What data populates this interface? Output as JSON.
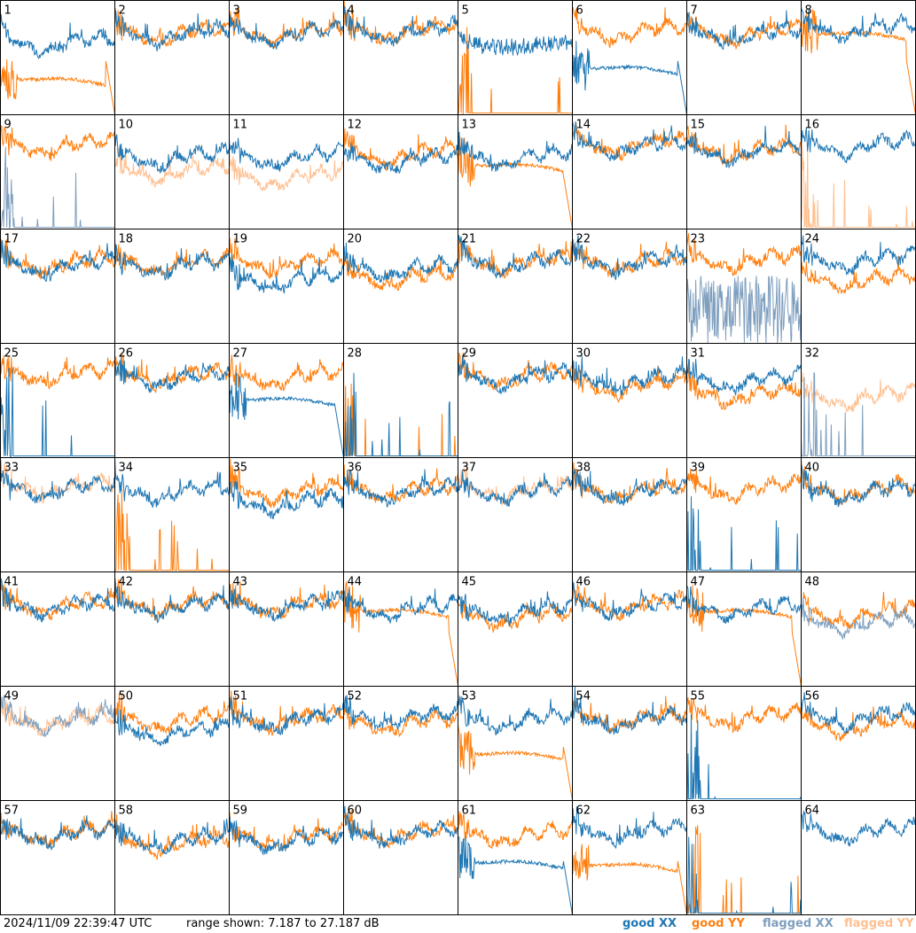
{
  "timestamp": "2024/11/09 22:39:47 UTC",
  "range_text": "range shown: 7.187 to 27.187 dB",
  "legend": {
    "good_xx": "good XX",
    "good_yy": "good YY",
    "flagged_xx": "flagged XX",
    "flagged_yy": "flagged YY"
  },
  "colors": {
    "good_xx": "#1f77b4",
    "good_yy": "#ff7f0e",
    "flagged_xx": "#7f9fbf",
    "flagged_yy": "#ffbf8f",
    "grid": "#000000"
  },
  "chart_data": {
    "type": "line",
    "title": "",
    "xlabel": "",
    "ylabel": "",
    "ylim": [
      7.187,
      27.187
    ],
    "grid_layout": [
      8,
      8
    ],
    "panels": [
      {
        "label": "1",
        "xx": {
          "shape": "normal",
          "level": 19.5
        },
        "yy": {
          "shape": "droop",
          "level": 12,
          "flagged": false
        }
      },
      {
        "label": "2",
        "xx": {
          "shape": "normal",
          "level": 21
        },
        "yy": {
          "shape": "normal",
          "level": 21.2
        }
      },
      {
        "label": "3",
        "xx": {
          "shape": "normal",
          "level": 21
        },
        "yy": {
          "shape": "normal",
          "level": 21.3
        }
      },
      {
        "label": "4",
        "xx": {
          "shape": "normal",
          "level": 21.5
        },
        "yy": {
          "shape": "normal",
          "level": 21.7
        }
      },
      {
        "label": "5",
        "xx": {
          "shape": "dip",
          "level": 18
        },
        "yy": {
          "shape": "spikes_low",
          "level": 8
        }
      },
      {
        "label": "6",
        "xx": {
          "shape": "droop",
          "level": 14
        },
        "yy": {
          "shape": "normal",
          "level": 21.5
        }
      },
      {
        "label": "7",
        "xx": {
          "shape": "normal",
          "level": 21
        },
        "yy": {
          "shape": "normal",
          "level": 21.2
        }
      },
      {
        "label": "8",
        "xx": {
          "shape": "normal",
          "level": 22
        },
        "yy": {
          "shape": "droop",
          "level": 20
        }
      },
      {
        "label": "9",
        "xx": {
          "shape": "spikes_low",
          "level": 8,
          "flagged": true
        },
        "yy": {
          "shape": "normal",
          "level": 21.5
        }
      },
      {
        "label": "10",
        "xx": {
          "shape": "normal",
          "level": 19.5
        },
        "yy": {
          "shape": "normal",
          "level": 17,
          "flagged": true
        }
      },
      {
        "label": "11",
        "xx": {
          "shape": "normal",
          "level": 19.5
        },
        "yy": {
          "shape": "normal",
          "level": 16,
          "flagged": true
        }
      },
      {
        "label": "12",
        "xx": {
          "shape": "normal",
          "level": 19
        },
        "yy": {
          "shape": "normal",
          "level": 20
        }
      },
      {
        "label": "13",
        "xx": {
          "shape": "normal",
          "level": 19.5
        },
        "yy": {
          "shape": "droop",
          "level": 17
        }
      },
      {
        "label": "14",
        "xx": {
          "shape": "normal",
          "level": 21.5
        },
        "yy": {
          "shape": "normal",
          "level": 21.6
        }
      },
      {
        "label": "15",
        "xx": {
          "shape": "normal",
          "level": 20.5
        },
        "yy": {
          "shape": "normal",
          "level": 20.8
        }
      },
      {
        "label": "16",
        "xx": {
          "shape": "normal",
          "level": 21.5
        },
        "yy": {
          "shape": "spikes_low",
          "level": 7.4,
          "flagged": true
        }
      },
      {
        "label": "17",
        "xx": {
          "shape": "normal",
          "level": 20.5
        },
        "yy": {
          "shape": "normal",
          "level": 21
        }
      },
      {
        "label": "18",
        "xx": {
          "shape": "normal",
          "level": 20.5
        },
        "yy": {
          "shape": "normal",
          "level": 21
        }
      },
      {
        "label": "19",
        "xx": {
          "shape": "normal",
          "level": 18
        },
        "yy": {
          "shape": "normal",
          "level": 21
        }
      },
      {
        "label": "20",
        "xx": {
          "shape": "normal",
          "level": 20
        },
        "yy": {
          "shape": "normal",
          "level": 18.5
        }
      },
      {
        "label": "21",
        "xx": {
          "shape": "normal",
          "level": 21
        },
        "yy": {
          "shape": "normal",
          "level": 21.2
        }
      },
      {
        "label": "22",
        "xx": {
          "shape": "normal",
          "level": 21
        },
        "yy": {
          "shape": "normal",
          "level": 21.2
        }
      },
      {
        "label": "23",
        "xx": {
          "shape": "spikes_mid",
          "level": 14,
          "flagged": true
        },
        "yy": {
          "shape": "normal",
          "level": 21.5
        }
      },
      {
        "label": "24",
        "xx": {
          "shape": "normal",
          "level": 21.5
        },
        "yy": {
          "shape": "normal",
          "level": 18
        }
      },
      {
        "label": "25",
        "xx": {
          "shape": "spikes_low",
          "level": 7.4
        },
        "yy": {
          "shape": "normal",
          "level": 21.5
        }
      },
      {
        "label": "26",
        "xx": {
          "shape": "normal",
          "level": 21
        },
        "yy": {
          "shape": "normal",
          "level": 21.2
        }
      },
      {
        "label": "27",
        "xx": {
          "shape": "droop",
          "level": 16
        },
        "yy": {
          "shape": "normal",
          "level": 21
        }
      },
      {
        "label": "28",
        "xx": {
          "shape": "spikes_low",
          "level": 7.4
        },
        "yy": {
          "shape": "spikes_low",
          "level": 8
        }
      },
      {
        "label": "29",
        "xx": {
          "shape": "normal",
          "level": 21
        },
        "yy": {
          "shape": "normal",
          "level": 21.3
        }
      },
      {
        "label": "30",
        "xx": {
          "shape": "normal",
          "level": 20.5
        },
        "yy": {
          "shape": "normal",
          "level": 19.5
        }
      },
      {
        "label": "31",
        "xx": {
          "shape": "normal",
          "level": 20.5
        },
        "yy": {
          "shape": "normal",
          "level": 18
        }
      },
      {
        "label": "32",
        "xx": {
          "shape": "spikes_low",
          "level": 7.4,
          "flagged": true
        },
        "yy": {
          "shape": "normal",
          "level": 17.5,
          "flagged": true
        }
      },
      {
        "label": "33",
        "xx": {
          "shape": "normal",
          "level": 21.5
        },
        "yy": {
          "shape": "normal",
          "level": 21.8,
          "flagged": true
        }
      },
      {
        "label": "34",
        "xx": {
          "shape": "normal",
          "level": 21
        },
        "yy": {
          "shape": "spikes_low",
          "level": 8
        }
      },
      {
        "label": "35",
        "xx": {
          "shape": "normal",
          "level": 19
        },
        "yy": {
          "shape": "normal",
          "level": 21
        }
      },
      {
        "label": "36",
        "xx": {
          "shape": "normal",
          "level": 21
        },
        "yy": {
          "shape": "normal",
          "level": 21.2
        }
      },
      {
        "label": "37",
        "xx": {
          "shape": "normal",
          "level": 21
        },
        "yy": {
          "shape": "normal",
          "level": 21.3,
          "flagged": true
        }
      },
      {
        "label": "38",
        "xx": {
          "shape": "normal",
          "level": 21
        },
        "yy": {
          "shape": "normal",
          "level": 21.2
        }
      },
      {
        "label": "39",
        "xx": {
          "shape": "spikes_low",
          "level": 8
        },
        "yy": {
          "shape": "normal",
          "level": 21.5
        }
      },
      {
        "label": "40",
        "xx": {
          "shape": "normal",
          "level": 21
        },
        "yy": {
          "shape": "normal",
          "level": 21.3
        }
      },
      {
        "label": "41",
        "xx": {
          "shape": "normal",
          "level": 21
        },
        "yy": {
          "shape": "normal",
          "level": 21.2
        }
      },
      {
        "label": "42",
        "xx": {
          "shape": "normal",
          "level": 21
        },
        "yy": {
          "shape": "normal",
          "level": 21.3
        }
      },
      {
        "label": "43",
        "xx": {
          "shape": "normal",
          "level": 21
        },
        "yy": {
          "shape": "normal",
          "level": 21.2
        }
      },
      {
        "label": "44",
        "xx": {
          "shape": "normal",
          "level": 20.5
        },
        "yy": {
          "shape": "droop",
          "level": 19
        }
      },
      {
        "label": "45",
        "xx": {
          "shape": "normal",
          "level": 20
        },
        "yy": {
          "shape": "normal",
          "level": 19
        }
      },
      {
        "label": "46",
        "xx": {
          "shape": "normal",
          "level": 21
        },
        "yy": {
          "shape": "normal",
          "level": 21.2
        }
      },
      {
        "label": "47",
        "xx": {
          "shape": "normal",
          "level": 20.5
        },
        "yy": {
          "shape": "droop",
          "level": 19
        }
      },
      {
        "label": "48",
        "xx": {
          "shape": "normal",
          "level": 18,
          "flagged": true
        },
        "yy": {
          "shape": "normal",
          "level": 19.5
        }
      },
      {
        "label": "49",
        "xx": {
          "shape": "normal",
          "level": 21,
          "flagged": true
        },
        "yy": {
          "shape": "normal",
          "level": 21,
          "flagged": true
        }
      },
      {
        "label": "50",
        "xx": {
          "shape": "normal",
          "level": 19
        },
        "yy": {
          "shape": "normal",
          "level": 21
        }
      },
      {
        "label": "51",
        "xx": {
          "shape": "normal",
          "level": 21
        },
        "yy": {
          "shape": "normal",
          "level": 21.2
        }
      },
      {
        "label": "52",
        "xx": {
          "shape": "normal",
          "level": 21.5
        },
        "yy": {
          "shape": "normal",
          "level": 20.5
        }
      },
      {
        "label": "53",
        "xx": {
          "shape": "normal",
          "level": 21
        },
        "yy": {
          "shape": "droop",
          "level": 14
        }
      },
      {
        "label": "54",
        "xx": {
          "shape": "normal",
          "level": 21
        },
        "yy": {
          "shape": "normal",
          "level": 21.3
        }
      },
      {
        "label": "55",
        "xx": {
          "shape": "spikes_low",
          "level": 8
        },
        "yy": {
          "shape": "normal",
          "level": 21.5
        }
      },
      {
        "label": "56",
        "xx": {
          "shape": "normal",
          "level": 21.5
        },
        "yy": {
          "shape": "normal",
          "level": 20
        }
      },
      {
        "label": "57",
        "xx": {
          "shape": "normal",
          "level": 21
        },
        "yy": {
          "shape": "normal",
          "level": 21.3
        }
      },
      {
        "label": "58",
        "xx": {
          "shape": "normal",
          "level": 20
        },
        "yy": {
          "shape": "normal",
          "level": 19.5
        }
      },
      {
        "label": "59",
        "xx": {
          "shape": "normal",
          "level": 20
        },
        "yy": {
          "shape": "normal",
          "level": 20.5
        }
      },
      {
        "label": "60",
        "xx": {
          "shape": "normal",
          "level": 21
        },
        "yy": {
          "shape": "normal",
          "level": 21.3
        }
      },
      {
        "label": "61",
        "xx": {
          "shape": "droop",
          "level": 15
        },
        "yy": {
          "shape": "normal",
          "level": 21
        }
      },
      {
        "label": "62",
        "xx": {
          "shape": "normal",
          "level": 21.5
        },
        "yy": {
          "shape": "droop",
          "level": 14.5
        }
      },
      {
        "label": "63",
        "xx": {
          "shape": "spikes_low",
          "level": 7.4
        },
        "yy": {
          "shape": "spikes_low",
          "level": 8
        }
      },
      {
        "label": "64",
        "xx": {
          "shape": "normal",
          "level": 21.5
        },
        "yy": {
          "shape": "none",
          "level": 0
        }
      }
    ]
  }
}
